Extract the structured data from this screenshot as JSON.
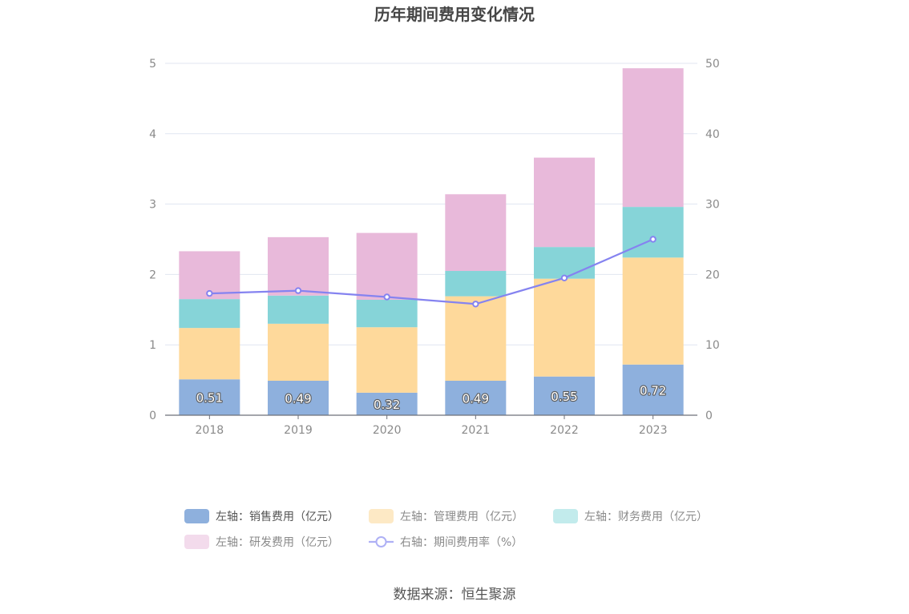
{
  "chart_data": {
    "type": "bar",
    "stacked": true,
    "title": "历年期间费用变化情况",
    "categories": [
      "2018",
      "2019",
      "2020",
      "2021",
      "2022",
      "2023"
    ],
    "series": [
      {
        "name": "左轴：销售费用（亿元）",
        "axis": "left",
        "kind": "bar",
        "color": "#8eb0dd",
        "values": [
          0.51,
          0.49,
          0.32,
          0.49,
          0.55,
          0.72
        ],
        "labels_shown": true
      },
      {
        "name": "左轴：管理费用（亿元）",
        "axis": "left",
        "kind": "bar",
        "color": "#fed99b",
        "values": [
          0.73,
          0.81,
          0.93,
          1.2,
          1.39,
          1.52
        ]
      },
      {
        "name": "左轴：财务费用（亿元）",
        "axis": "left",
        "kind": "bar",
        "color": "#86d4d8",
        "values": [
          0.41,
          0.4,
          0.39,
          0.36,
          0.45,
          0.72
        ]
      },
      {
        "name": "左轴：研发费用（亿元）",
        "axis": "left",
        "kind": "bar",
        "color": "#e8b9da",
        "values": [
          0.68,
          0.83,
          0.95,
          1.09,
          1.27,
          1.97
        ]
      },
      {
        "name": "右轴：期间费用率（%）",
        "axis": "right",
        "kind": "line",
        "color": "#8583f0",
        "values": [
          17.3,
          17.7,
          16.8,
          15.8,
          19.5,
          25.0
        ]
      }
    ],
    "y_left": {
      "min": 0,
      "max": 5,
      "ticks": [
        "0",
        "1",
        "2",
        "3",
        "4",
        "5"
      ]
    },
    "y_right": {
      "min": 0,
      "max": 50,
      "ticks": [
        "0",
        "10",
        "20",
        "30",
        "40",
        "50"
      ]
    },
    "grid": true,
    "legend_position": "bottom",
    "source": "数据来源：恒生聚源"
  }
}
